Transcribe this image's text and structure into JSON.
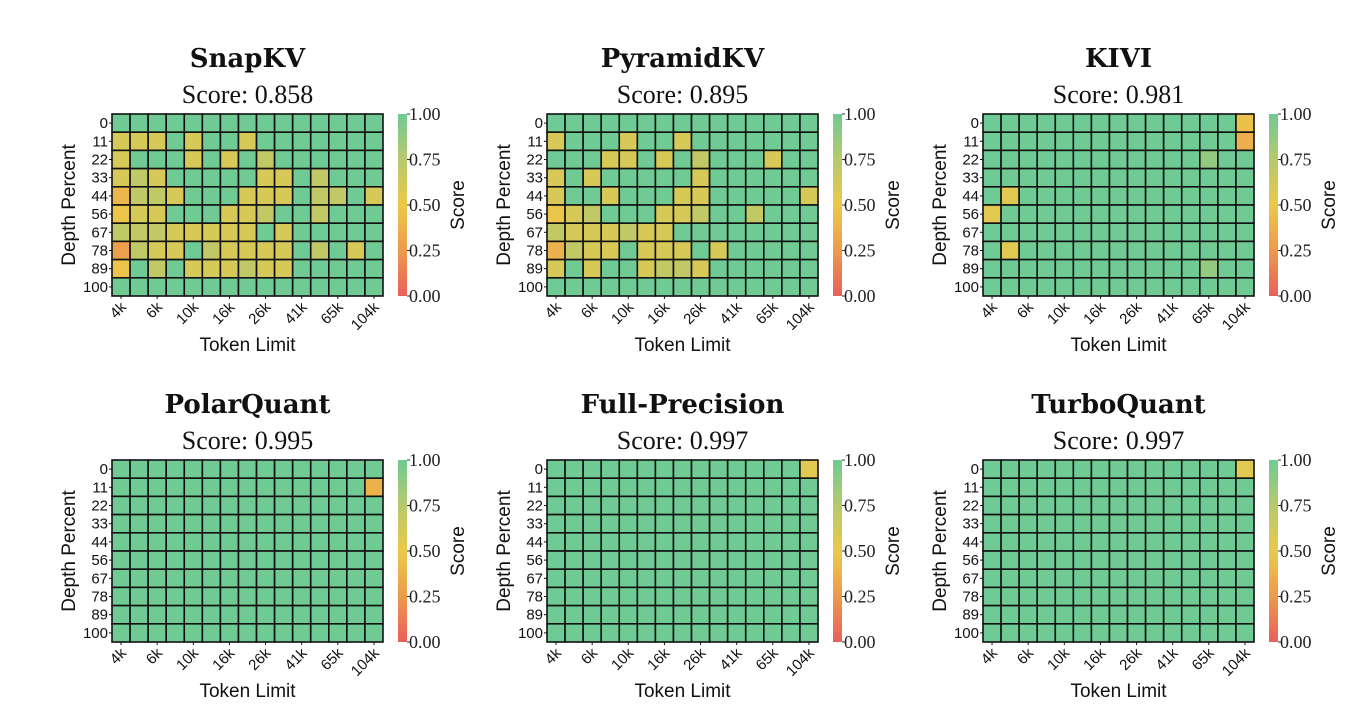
{
  "chart_data": [
    {
      "type": "heatmap",
      "title": "SnapKV",
      "subtitle": "Score: 0.858",
      "xlabel": "Token Limit",
      "ylabel": "Depth Percent",
      "colorbar_label": "Score",
      "colorbar_ticks": [
        "0.00",
        "0.25",
        "0.50",
        "0.75",
        "1.00"
      ],
      "xtick_labels": [
        "4k",
        "6k",
        "10k",
        "16k",
        "26k",
        "41k",
        "65k",
        "104k"
      ],
      "y": [
        "0",
        "11",
        "22",
        "33",
        "44",
        "56",
        "67",
        "78",
        "89",
        "100"
      ],
      "values": [
        [
          1,
          1,
          1,
          1,
          1,
          1,
          1,
          1,
          1,
          1,
          1,
          1,
          1,
          1,
          1
        ],
        [
          0.6,
          0.6,
          0.6,
          1,
          0.6,
          1,
          1,
          0.6,
          1,
          1,
          1,
          1,
          1,
          1,
          1
        ],
        [
          0.6,
          1,
          1,
          1,
          0.6,
          1,
          0.6,
          1,
          0.7,
          1,
          1,
          1,
          1,
          1,
          1
        ],
        [
          0.6,
          0.7,
          0.6,
          1,
          1,
          1,
          1,
          1,
          0.6,
          0.6,
          1,
          0.7,
          1,
          1,
          1
        ],
        [
          0.4,
          0.7,
          0.7,
          0.6,
          1,
          1,
          1,
          0.6,
          0.6,
          0.6,
          1,
          0.7,
          0.7,
          1,
          0.6
        ],
        [
          0.48,
          0.6,
          0.6,
          1,
          1,
          1,
          0.6,
          0.6,
          0.7,
          1,
          1,
          0.7,
          1,
          1,
          1
        ],
        [
          0.7,
          0.7,
          0.7,
          0.6,
          0.6,
          0.6,
          0.6,
          0.6,
          1,
          0.6,
          1,
          1,
          1,
          1,
          1
        ],
        [
          0.28,
          0.7,
          0.6,
          0.6,
          1,
          0.7,
          0.6,
          0.6,
          0.6,
          0.6,
          1,
          0.7,
          1,
          0.6,
          1
        ],
        [
          0.48,
          1,
          0.7,
          1,
          0.6,
          0.6,
          0.6,
          0.7,
          0.6,
          0.6,
          1,
          1,
          1,
          1,
          1
        ],
        [
          1,
          1,
          1,
          1,
          1,
          1,
          1,
          1,
          1,
          1,
          1,
          1,
          1,
          1,
          1
        ]
      ],
      "zlim": [
        0,
        1
      ]
    },
    {
      "type": "heatmap",
      "title": "PyramidKV",
      "subtitle": "Score: 0.895",
      "xlabel": "Token Limit",
      "ylabel": "Depth Percent",
      "colorbar_label": "Score",
      "colorbar_ticks": [
        "0.00",
        "0.25",
        "0.50",
        "0.75",
        "1.00"
      ],
      "xtick_labels": [
        "4k",
        "6k",
        "10k",
        "16k",
        "26k",
        "41k",
        "65k",
        "104k"
      ],
      "y": [
        "0",
        "11",
        "22",
        "33",
        "44",
        "56",
        "67",
        "78",
        "89",
        "100"
      ],
      "values": [
        [
          1,
          1,
          1,
          1,
          1,
          1,
          1,
          1,
          1,
          1,
          1,
          1,
          1,
          1,
          1
        ],
        [
          0.6,
          1,
          1,
          1,
          0.6,
          1,
          1,
          0.6,
          1,
          1,
          1,
          1,
          1,
          1,
          1
        ],
        [
          1,
          1,
          1,
          0.6,
          0.6,
          1,
          0.6,
          1,
          0.7,
          1,
          1,
          1,
          0.6,
          1,
          1
        ],
        [
          0.6,
          1,
          0.6,
          1,
          1,
          1,
          1,
          1,
          0.6,
          1,
          1,
          1,
          1,
          1,
          1
        ],
        [
          0.6,
          1,
          1,
          0.6,
          1,
          1,
          1,
          0.6,
          0.6,
          1,
          1,
          1,
          1,
          1,
          0.6
        ],
        [
          0.48,
          0.6,
          0.7,
          1,
          1,
          1,
          0.6,
          0.6,
          0.7,
          1,
          1,
          0.7,
          1,
          1,
          1
        ],
        [
          0.7,
          0.6,
          0.6,
          0.6,
          0.7,
          0.6,
          0.6,
          1,
          1,
          1,
          1,
          1,
          1,
          1,
          1
        ],
        [
          0.38,
          0.7,
          0.6,
          0.6,
          1,
          0.6,
          0.6,
          0.6,
          1,
          0.6,
          1,
          1,
          1,
          1,
          1
        ],
        [
          0.6,
          1,
          0.6,
          1,
          1,
          0.6,
          0.7,
          0.7,
          0.6,
          1,
          1,
          1,
          1,
          1,
          1
        ],
        [
          1,
          1,
          1,
          1,
          1,
          1,
          1,
          1,
          1,
          1,
          1,
          1,
          1,
          1,
          1
        ]
      ],
      "zlim": [
        0,
        1
      ]
    },
    {
      "type": "heatmap",
      "title": "KIVI",
      "subtitle": "Score: 0.981",
      "xlabel": "Token Limit",
      "ylabel": "Depth Percent",
      "colorbar_label": "Score",
      "colorbar_ticks": [
        "0.00",
        "0.25",
        "0.50",
        "0.75",
        "1.00"
      ],
      "xtick_labels": [
        "4k",
        "6k",
        "10k",
        "16k",
        "26k",
        "41k",
        "65k",
        "104k"
      ],
      "y": [
        "0",
        "11",
        "22",
        "33",
        "44",
        "56",
        "67",
        "78",
        "89",
        "100"
      ],
      "values": [
        [
          1,
          1,
          1,
          1,
          1,
          1,
          1,
          1,
          1,
          1,
          1,
          1,
          1,
          1,
          0.45
        ],
        [
          1,
          1,
          1,
          1,
          1,
          1,
          1,
          1,
          1,
          1,
          1,
          1,
          1,
          1,
          0.36
        ],
        [
          1,
          1,
          1,
          1,
          1,
          1,
          1,
          1,
          1,
          1,
          1,
          1,
          0.87,
          1,
          1
        ],
        [
          1,
          1,
          1,
          1,
          1,
          1,
          1,
          1,
          1,
          1,
          1,
          1,
          1,
          1,
          1
        ],
        [
          1,
          0.55,
          1,
          1,
          1,
          1,
          1,
          1,
          1,
          1,
          1,
          1,
          1,
          1,
          1
        ],
        [
          0.55,
          1,
          1,
          1,
          1,
          1,
          1,
          1,
          1,
          1,
          1,
          1,
          1,
          1,
          1
        ],
        [
          1,
          1,
          1,
          1,
          1,
          1,
          1,
          1,
          1,
          1,
          1,
          1,
          1,
          1,
          1
        ],
        [
          1,
          0.55,
          1,
          1,
          1,
          1,
          1,
          1,
          1,
          1,
          1,
          1,
          1,
          1,
          1
        ],
        [
          1,
          1,
          1,
          1,
          1,
          1,
          1,
          1,
          1,
          1,
          1,
          1,
          0.87,
          1,
          1
        ],
        [
          1,
          1,
          1,
          1,
          1,
          1,
          1,
          1,
          1,
          1,
          1,
          1,
          1,
          1,
          1
        ]
      ],
      "zlim": [
        0,
        1
      ]
    },
    {
      "type": "heatmap",
      "title": "PolarQuant",
      "subtitle": "Score: 0.995",
      "xlabel": "Token Limit",
      "ylabel": "Depth Percent",
      "colorbar_label": "Score",
      "colorbar_ticks": [
        "0.00",
        "0.25",
        "0.50",
        "0.75",
        "1.00"
      ],
      "xtick_labels": [
        "4k",
        "6k",
        "10k",
        "16k",
        "26k",
        "41k",
        "65k",
        "104k"
      ],
      "y": [
        "0",
        "11",
        "22",
        "33",
        "44",
        "56",
        "67",
        "78",
        "89",
        "100"
      ],
      "values": [
        [
          1,
          1,
          1,
          1,
          1,
          1,
          1,
          1,
          1,
          1,
          1,
          1,
          1,
          1,
          1
        ],
        [
          1,
          1,
          1,
          1,
          1,
          1,
          1,
          1,
          1,
          1,
          1,
          1,
          1,
          1,
          0.38
        ],
        [
          1,
          1,
          1,
          1,
          1,
          1,
          1,
          1,
          1,
          1,
          1,
          1,
          1,
          1,
          1
        ],
        [
          1,
          1,
          1,
          1,
          1,
          1,
          1,
          1,
          1,
          1,
          1,
          1,
          1,
          1,
          1
        ],
        [
          1,
          1,
          1,
          1,
          1,
          1,
          1,
          1,
          1,
          1,
          1,
          1,
          1,
          1,
          1
        ],
        [
          1,
          1,
          1,
          1,
          1,
          1,
          1,
          1,
          1,
          1,
          1,
          1,
          1,
          1,
          1
        ],
        [
          1,
          1,
          1,
          1,
          1,
          1,
          1,
          1,
          1,
          1,
          1,
          1,
          1,
          1,
          1
        ],
        [
          1,
          1,
          1,
          1,
          1,
          1,
          1,
          1,
          1,
          1,
          1,
          1,
          1,
          1,
          1
        ],
        [
          1,
          1,
          1,
          1,
          1,
          1,
          1,
          1,
          1,
          1,
          1,
          1,
          1,
          1,
          1
        ],
        [
          1,
          1,
          1,
          1,
          1,
          1,
          1,
          1,
          1,
          1,
          1,
          1,
          1,
          1,
          1
        ]
      ],
      "zlim": [
        0,
        1
      ]
    },
    {
      "type": "heatmap",
      "title": "Full-Precision",
      "subtitle": "Score: 0.997",
      "xlabel": "Token Limit",
      "ylabel": "Depth Percent",
      "colorbar_label": "Score",
      "colorbar_ticks": [
        "0.00",
        "0.25",
        "0.50",
        "0.75",
        "1.00"
      ],
      "xtick_labels": [
        "4k",
        "6k",
        "10k",
        "16k",
        "26k",
        "41k",
        "65k",
        "104k"
      ],
      "y": [
        "0",
        "11",
        "22",
        "33",
        "44",
        "56",
        "67",
        "78",
        "89",
        "100"
      ],
      "values": [
        [
          1,
          1,
          1,
          1,
          1,
          1,
          1,
          1,
          1,
          1,
          1,
          1,
          1,
          1,
          0.55
        ],
        [
          1,
          1,
          1,
          1,
          1,
          1,
          1,
          1,
          1,
          1,
          1,
          1,
          1,
          1,
          1
        ],
        [
          1,
          1,
          1,
          1,
          1,
          1,
          1,
          1,
          1,
          1,
          1,
          1,
          1,
          1,
          1
        ],
        [
          1,
          1,
          1,
          1,
          1,
          1,
          1,
          1,
          1,
          1,
          1,
          1,
          1,
          1,
          1
        ],
        [
          1,
          1,
          1,
          1,
          1,
          1,
          1,
          1,
          1,
          1,
          1,
          1,
          1,
          1,
          1
        ],
        [
          1,
          1,
          1,
          1,
          1,
          1,
          1,
          1,
          1,
          1,
          1,
          1,
          1,
          1,
          1
        ],
        [
          1,
          1,
          1,
          1,
          1,
          1,
          1,
          1,
          1,
          1,
          1,
          1,
          1,
          1,
          1
        ],
        [
          1,
          1,
          1,
          1,
          1,
          1,
          1,
          1,
          1,
          1,
          1,
          1,
          1,
          1,
          1
        ],
        [
          1,
          1,
          1,
          1,
          1,
          1,
          1,
          1,
          1,
          1,
          1,
          1,
          1,
          1,
          1
        ],
        [
          1,
          1,
          1,
          1,
          1,
          1,
          1,
          1,
          1,
          1,
          1,
          1,
          1,
          1,
          1
        ]
      ],
      "zlim": [
        0,
        1
      ]
    },
    {
      "type": "heatmap",
      "title": "TurboQuant",
      "subtitle": "Score: 0.997",
      "xlabel": "Token Limit",
      "ylabel": "Depth Percent",
      "colorbar_label": "Score",
      "colorbar_ticks": [
        "0.00",
        "0.25",
        "0.50",
        "0.75",
        "1.00"
      ],
      "xtick_labels": [
        "4k",
        "6k",
        "10k",
        "16k",
        "26k",
        "41k",
        "65k",
        "104k"
      ],
      "y": [
        "0",
        "11",
        "22",
        "33",
        "44",
        "56",
        "67",
        "78",
        "89",
        "100"
      ],
      "values": [
        [
          1,
          1,
          1,
          1,
          1,
          1,
          1,
          1,
          1,
          1,
          1,
          1,
          1,
          1,
          0.55
        ],
        [
          1,
          1,
          1,
          1,
          1,
          1,
          1,
          1,
          1,
          1,
          1,
          1,
          1,
          1,
          1
        ],
        [
          1,
          1,
          1,
          1,
          1,
          1,
          1,
          1,
          1,
          1,
          1,
          1,
          1,
          1,
          1
        ],
        [
          1,
          1,
          1,
          1,
          1,
          1,
          1,
          1,
          1,
          1,
          1,
          1,
          1,
          1,
          1
        ],
        [
          1,
          1,
          1,
          1,
          1,
          1,
          1,
          1,
          1,
          1,
          1,
          1,
          1,
          1,
          1
        ],
        [
          1,
          1,
          1,
          1,
          1,
          1,
          1,
          1,
          1,
          1,
          1,
          1,
          1,
          1,
          1
        ],
        [
          1,
          1,
          1,
          1,
          1,
          1,
          1,
          1,
          1,
          1,
          1,
          1,
          1,
          1,
          1
        ],
        [
          1,
          1,
          1,
          1,
          1,
          1,
          1,
          1,
          1,
          1,
          1,
          1,
          1,
          1,
          1
        ],
        [
          1,
          1,
          1,
          1,
          1,
          1,
          1,
          1,
          1,
          1,
          1,
          1,
          1,
          1,
          1
        ],
        [
          1,
          1,
          1,
          1,
          1,
          1,
          1,
          1,
          1,
          1,
          1,
          1,
          1,
          1,
          1
        ]
      ],
      "zlim": [
        0,
        1
      ]
    }
  ],
  "colormap": {
    "stops": [
      {
        "value": 0.0,
        "color": "#e8605a"
      },
      {
        "value": 0.25,
        "color": "#ec9a4d"
      },
      {
        "value": 0.5,
        "color": "#ebc94a"
      },
      {
        "value": 0.75,
        "color": "#b7c96d"
      },
      {
        "value": 1.0,
        "color": "#6fcb93"
      }
    ]
  }
}
